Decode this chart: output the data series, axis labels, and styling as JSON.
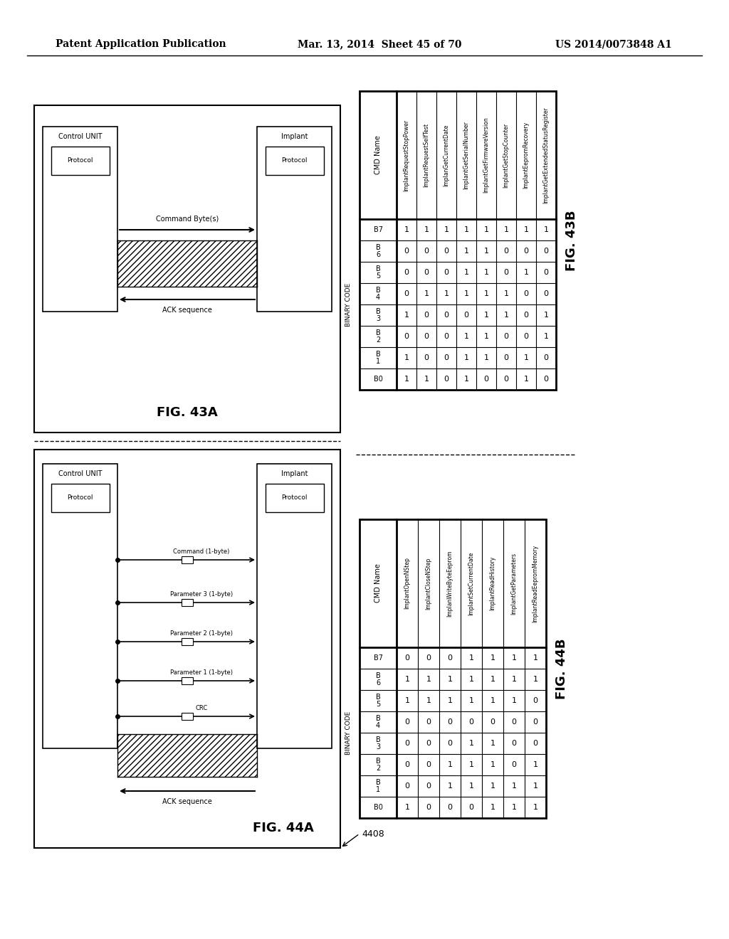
{
  "header_left": "Patent Application Publication",
  "header_mid": "Mar. 13, 2014  Sheet 45 of 70",
  "header_right": "US 2014/0073848 A1",
  "fig43a_label": "FIG. 43A",
  "fig43b_label": "FIG. 43B",
  "fig44a_label": "FIG. 44A",
  "fig44b_label": "FIG. 44B",
  "table43b_cmds": [
    "ImplantRequestStopPower",
    "ImplantRequestSelfTest",
    "ImplanGetCurrentDate",
    "ImplantGetSerialNumber",
    "ImplantGetFirmwareVersion",
    "ImplantGetStopCounter",
    "ImplantEepromRecovery",
    "ImplantGetExtendedStatusRegister"
  ],
  "table43b_bits": [
    "B7",
    "B 6",
    "B 5",
    "B 4",
    "B 3",
    "B 2",
    "B 1",
    "B0"
  ],
  "table43b_data_by_cmd": [
    [
      1,
      0,
      0,
      0,
      1,
      0,
      1,
      1
    ],
    [
      1,
      0,
      0,
      1,
      0,
      0,
      0,
      1
    ],
    [
      1,
      0,
      0,
      1,
      0,
      0,
      0,
      0
    ],
    [
      1,
      1,
      1,
      1,
      0,
      1,
      1,
      1
    ],
    [
      1,
      1,
      1,
      1,
      1,
      1,
      1,
      0
    ],
    [
      1,
      0,
      0,
      1,
      1,
      0,
      0,
      0
    ],
    [
      1,
      0,
      1,
      0,
      0,
      0,
      1,
      1
    ],
    [
      1,
      0,
      0,
      0,
      1,
      1,
      0,
      0
    ]
  ],
  "table44b_cmds": [
    "ImplantOpenNStep",
    "ImplantCloseNStep",
    "ImplanWriteByteEeprom",
    "ImplantSetCurrentDate",
    "ImplantReadHistory",
    "ImplantGetParameters",
    "ImplantReadEepromMemory"
  ],
  "table44b_bits": [
    "B7",
    "B 6",
    "B 5",
    "B 4",
    "B 3",
    "B 2",
    "B 1",
    "B0"
  ],
  "table44b_data_by_cmd": [
    [
      0,
      1,
      1,
      0,
      0,
      0,
      0,
      1
    ],
    [
      0,
      1,
      1,
      0,
      0,
      0,
      0,
      0
    ],
    [
      0,
      1,
      1,
      0,
      0,
      1,
      1,
      0
    ],
    [
      1,
      1,
      1,
      0,
      1,
      1,
      1,
      0
    ],
    [
      1,
      1,
      1,
      0,
      1,
      1,
      1,
      1
    ],
    [
      1,
      1,
      1,
      0,
      0,
      0,
      1,
      1
    ],
    [
      1,
      1,
      0,
      0,
      0,
      1,
      1,
      1
    ]
  ],
  "bg_color": "#ffffff"
}
